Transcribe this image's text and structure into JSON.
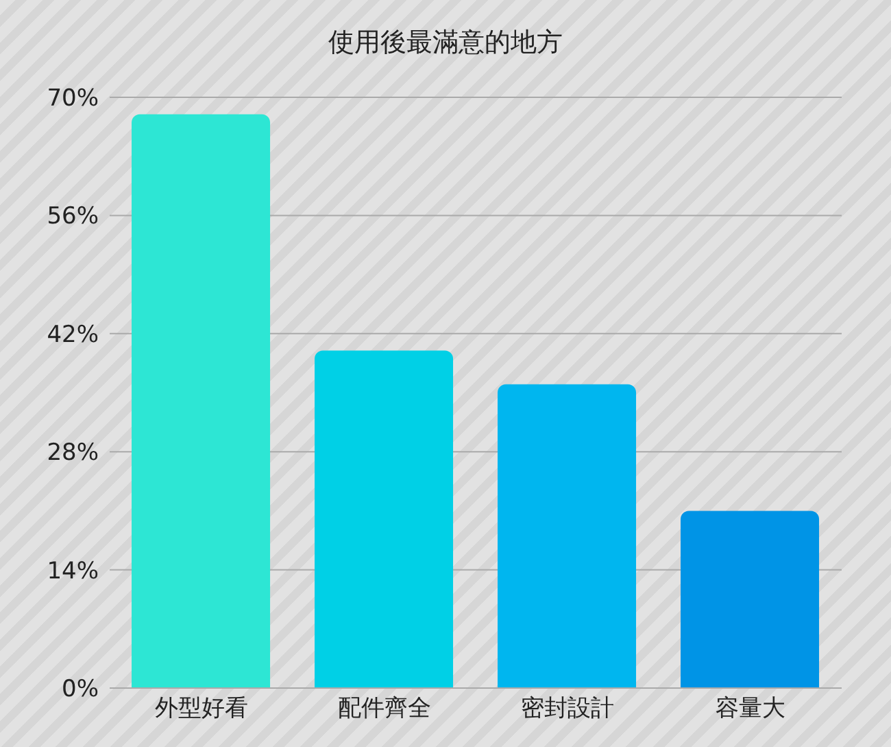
{
  "chart_data": {
    "type": "bar",
    "title": "使用後最滿意的地方",
    "categories": [
      "外型好看",
      "配件齊全",
      "密封設計",
      "容量大"
    ],
    "values": [
      68,
      40,
      36,
      21
    ],
    "colors": [
      "#2de6d4",
      "#00d0e6",
      "#00b6ef",
      "#0094e6"
    ],
    "ylim": [
      0,
      70
    ],
    "yticks": [
      {
        "value": 0,
        "label": "0%"
      },
      {
        "value": 14,
        "label": "14%"
      },
      {
        "value": 28,
        "label": "28%"
      },
      {
        "value": 42,
        "label": "42%"
      },
      {
        "value": 56,
        "label": "56%"
      },
      {
        "value": 70,
        "label": "70%"
      }
    ],
    "grid": "y"
  }
}
